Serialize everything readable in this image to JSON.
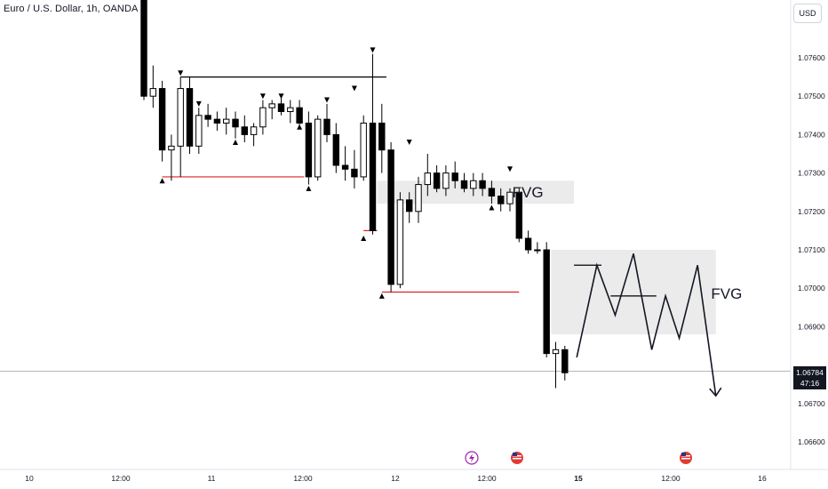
{
  "header": {
    "symbol_title": "Euro / U.S. Dollar, 1h, OANDA",
    "currency_button": "USD"
  },
  "price_tag": {
    "price": "1.06784",
    "countdown": "47:16"
  },
  "zones": [
    {
      "label": "FVG"
    },
    {
      "label": "FVG"
    }
  ],
  "colors": {
    "up_candle": "#ffffff",
    "down_candle": "#000000",
    "support_line": "#e0202a",
    "zone_fill": "#ebebeb",
    "current_price_line": "#b2b5be"
  },
  "event_icons": [
    {
      "name": "lightning-event-icon",
      "x": "12.05"
    },
    {
      "name": "us-flag-event-icon",
      "x": "12.09"
    },
    {
      "name": "us-flag-event-icon",
      "x": "15.12"
    }
  ],
  "chart_data": {
    "type": "candlestick",
    "title": "Euro / U.S. Dollar, 1h, OANDA",
    "x_ticks": [
      "10",
      "12:00",
      "11",
      "12:00",
      "12",
      "12:00",
      "15",
      "12:00",
      "16"
    ],
    "y_ticks": [
      "1.07600",
      "1.07500",
      "1.07400",
      "1.07300",
      "1.07200",
      "1.07100",
      "1.07000",
      "1.06900",
      "1.06700",
      "1.06600"
    ],
    "ylim": [
      1.0655,
      1.0775
    ],
    "candles": [
      {
        "t": 0,
        "o": 1.078,
        "h": 1.0785,
        "l": 1.0749,
        "c": 1.075
      },
      {
        "t": 1,
        "o": 1.075,
        "h": 1.0758,
        "l": 1.0747,
        "c": 1.0752
      },
      {
        "t": 2,
        "o": 1.0752,
        "h": 1.0754,
        "l": 1.0733,
        "c": 1.0736
      },
      {
        "t": 3,
        "o": 1.0736,
        "h": 1.074,
        "l": 1.0728,
        "c": 1.0737
      },
      {
        "t": 4,
        "o": 1.0737,
        "h": 1.0755,
        "l": 1.0729,
        "c": 1.0752
      },
      {
        "t": 5,
        "o": 1.0752,
        "h": 1.0755,
        "l": 1.0735,
        "c": 1.0737
      },
      {
        "t": 6,
        "o": 1.0737,
        "h": 1.0747,
        "l": 1.0735,
        "c": 1.0745
      },
      {
        "t": 7,
        "o": 1.0745,
        "h": 1.0748,
        "l": 1.0742,
        "c": 1.0744
      },
      {
        "t": 8,
        "o": 1.0744,
        "h": 1.0746,
        "l": 1.0741,
        "c": 1.0743
      },
      {
        "t": 9,
        "o": 1.0743,
        "h": 1.0747,
        "l": 1.074,
        "c": 1.0744
      },
      {
        "t": 10,
        "o": 1.0744,
        "h": 1.0746,
        "l": 1.0739,
        "c": 1.0742
      },
      {
        "t": 11,
        "o": 1.0742,
        "h": 1.0745,
        "l": 1.0738,
        "c": 1.074
      },
      {
        "t": 12,
        "o": 1.074,
        "h": 1.0743,
        "l": 1.0737,
        "c": 1.0742
      },
      {
        "t": 13,
        "o": 1.0742,
        "h": 1.0749,
        "l": 1.074,
        "c": 1.0747
      },
      {
        "t": 14,
        "o": 1.0747,
        "h": 1.0749,
        "l": 1.0744,
        "c": 1.0748
      },
      {
        "t": 15,
        "o": 1.0748,
        "h": 1.075,
        "l": 1.0745,
        "c": 1.0746
      },
      {
        "t": 16,
        "o": 1.0746,
        "h": 1.0749,
        "l": 1.0743,
        "c": 1.0747
      },
      {
        "t": 17,
        "o": 1.0747,
        "h": 1.0749,
        "l": 1.0742,
        "c": 1.0743
      },
      {
        "t": 18,
        "o": 1.0743,
        "h": 1.0746,
        "l": 1.0727,
        "c": 1.0729
      },
      {
        "t": 19,
        "o": 1.0729,
        "h": 1.0745,
        "l": 1.0728,
        "c": 1.0744
      },
      {
        "t": 20,
        "o": 1.0744,
        "h": 1.0748,
        "l": 1.0738,
        "c": 1.074
      },
      {
        "t": 21,
        "o": 1.074,
        "h": 1.0743,
        "l": 1.073,
        "c": 1.0732
      },
      {
        "t": 22,
        "o": 1.0732,
        "h": 1.0737,
        "l": 1.0728,
        "c": 1.0731
      },
      {
        "t": 23,
        "o": 1.0731,
        "h": 1.0736,
        "l": 1.0726,
        "c": 1.0729
      },
      {
        "t": 24,
        "o": 1.0729,
        "h": 1.0745,
        "l": 1.0728,
        "c": 1.0743
      },
      {
        "t": 25,
        "o": 1.0743,
        "h": 1.0761,
        "l": 1.0714,
        "c": 1.0715
      },
      {
        "t": 26,
        "o": 1.0743,
        "h": 1.0748,
        "l": 1.073,
        "c": 1.0736
      },
      {
        "t": 27,
        "o": 1.0736,
        "h": 1.0738,
        "l": 1.0699,
        "c": 1.0701
      },
      {
        "t": 28,
        "o": 1.0701,
        "h": 1.0725,
        "l": 1.07,
        "c": 1.0723
      },
      {
        "t": 29,
        "o": 1.0723,
        "h": 1.0725,
        "l": 1.0717,
        "c": 1.072
      },
      {
        "t": 30,
        "o": 1.072,
        "h": 1.0729,
        "l": 1.0717,
        "c": 1.0727
      },
      {
        "t": 31,
        "o": 1.0727,
        "h": 1.0735,
        "l": 1.0724,
        "c": 1.073
      },
      {
        "t": 32,
        "o": 1.073,
        "h": 1.0732,
        "l": 1.0725,
        "c": 1.0726
      },
      {
        "t": 33,
        "o": 1.0726,
        "h": 1.0732,
        "l": 1.0724,
        "c": 1.073
      },
      {
        "t": 34,
        "o": 1.073,
        "h": 1.0733,
        "l": 1.0726,
        "c": 1.0728
      },
      {
        "t": 35,
        "o": 1.0728,
        "h": 1.073,
        "l": 1.0725,
        "c": 1.0726
      },
      {
        "t": 36,
        "o": 1.0726,
        "h": 1.073,
        "l": 1.0724,
        "c": 1.0728
      },
      {
        "t": 37,
        "o": 1.0728,
        "h": 1.073,
        "l": 1.0724,
        "c": 1.0726
      },
      {
        "t": 38,
        "o": 1.0726,
        "h": 1.0728,
        "l": 1.0722,
        "c": 1.0724
      },
      {
        "t": 39,
        "o": 1.0724,
        "h": 1.0726,
        "l": 1.072,
        "c": 1.0722
      },
      {
        "t": 40,
        "o": 1.0722,
        "h": 1.0726,
        "l": 1.072,
        "c": 1.0725
      },
      {
        "t": 41,
        "o": 1.0725,
        "h": 1.0726,
        "l": 1.0712,
        "c": 1.0713
      },
      {
        "t": 42,
        "o": 1.0713,
        "h": 1.0715,
        "l": 1.0709,
        "c": 1.071
      },
      {
        "t": 43,
        "o": 1.071,
        "h": 1.0712,
        "l": 1.0709,
        "c": 1.071
      },
      {
        "t": 44,
        "o": 1.071,
        "h": 1.0712,
        "l": 1.0682,
        "c": 1.0683
      },
      {
        "t": 45,
        "o": 1.0683,
        "h": 1.0686,
        "l": 1.0674,
        "c": 1.0684
      },
      {
        "t": 46,
        "o": 1.0684,
        "h": 1.0685,
        "l": 1.0676,
        "c": 1.0678
      }
    ],
    "zones": [
      {
        "label": "FVG",
        "t0": 25.5,
        "t1": 47,
        "y0": 1.0728,
        "y1": 1.0722
      },
      {
        "label": "FVG",
        "t0": 44.5,
        "t1": 62.5,
        "y0": 1.071,
        "y1": 1.0688
      }
    ],
    "horizontal_levels": [
      {
        "price": 1.0755,
        "t0": 4,
        "t1": 26.5,
        "color": "#000000"
      },
      {
        "price": 1.0729,
        "t0": 2,
        "t1": 17.5,
        "color": "#e0202a"
      },
      {
        "price": 1.0715,
        "t0": 24,
        "t1": 25.5,
        "color": "#e0202a"
      },
      {
        "price": 1.0699,
        "t0": 26,
        "t1": 41,
        "color": "#e0202a"
      },
      {
        "price": 1.0706,
        "t0": 47,
        "t1": 50,
        "color": "#000000"
      },
      {
        "price": 1.0698,
        "t0": 51,
        "t1": 56,
        "color": "#000000"
      }
    ],
    "markers": [
      {
        "t": 4,
        "y": 1.0756,
        "dir": "down"
      },
      {
        "t": 2,
        "y": 1.0728,
        "dir": "up"
      },
      {
        "t": 6,
        "y": 1.0748,
        "dir": "down"
      },
      {
        "t": 10,
        "y": 1.0738,
        "dir": "up"
      },
      {
        "t": 13,
        "y": 1.075,
        "dir": "down"
      },
      {
        "t": 15,
        "y": 1.075,
        "dir": "down"
      },
      {
        "t": 17,
        "y": 1.0742,
        "dir": "up"
      },
      {
        "t": 18,
        "y": 1.0726,
        "dir": "up"
      },
      {
        "t": 20,
        "y": 1.0749,
        "dir": "down"
      },
      {
        "t": 23,
        "y": 1.0752,
        "dir": "down"
      },
      {
        "t": 24,
        "y": 1.0713,
        "dir": "up"
      },
      {
        "t": 25,
        "y": 1.0762,
        "dir": "down"
      },
      {
        "t": 26,
        "y": 1.0698,
        "dir": "up"
      },
      {
        "t": 29,
        "y": 1.0738,
        "dir": "down"
      },
      {
        "t": 38,
        "y": 1.0721,
        "dir": "up"
      },
      {
        "t": 40,
        "y": 1.0731,
        "dir": "down"
      }
    ],
    "projection_path": [
      [
        47.3,
        1.0682
      ],
      [
        49.5,
        1.0706
      ],
      [
        51.5,
        1.0693
      ],
      [
        53.5,
        1.0709
      ],
      [
        55.5,
        1.0684
      ],
      [
        57.0,
        1.0698
      ],
      [
        58.5,
        1.0687
      ],
      [
        60.5,
        1.0706
      ],
      [
        62.5,
        1.0672
      ]
    ],
    "current_price": 1.06784
  }
}
